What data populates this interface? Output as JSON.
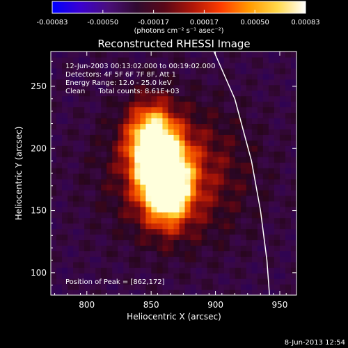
{
  "colorbar": {
    "ticks": [
      "-0.00083",
      "-0.00050",
      "-0.00017",
      "0.00017",
      "0.00050",
      "0.00083"
    ],
    "unit_label": "(photons cm⁻² s⁻¹ asec⁻²)",
    "stops": [
      "#0000ff",
      "#3b00d0",
      "#4a0f7a",
      "#300a30",
      "#5a0818",
      "#b01608",
      "#ff3d00",
      "#ff9a00",
      "#ffd84a",
      "#ffffff"
    ]
  },
  "chart_data": {
    "type": "heatmap",
    "title": "Reconstructed RHESSI Image",
    "xlabel": "Heliocentric X (arcsec)",
    "ylabel": "Heliocentric Y (arcsec)",
    "xlim": [
      772,
      963
    ],
    "ylim": [
      82,
      278
    ],
    "xticks": [
      800,
      850,
      900,
      950
    ],
    "yticks": [
      100,
      150,
      200,
      250
    ],
    "annotations": [
      "12-Jun-2003 00:13:02.000 to 00:19:02.000",
      "Detectors: 4F 5F 6F 7F 8F, Att 1",
      "Energy Range: 12.0 - 25.0 keV",
      "Clean      Total counts: 8.61E+03"
    ],
    "peak_label": "Position of Peak = [862,172]",
    "peak": [
      862,
      172
    ],
    "sources": [
      {
        "x": 862,
        "y": 172,
        "intensity": 1.0
      },
      {
        "x": 850,
        "y": 205,
        "intensity": 0.8
      }
    ],
    "limb_points": [
      [
        898,
        280
      ],
      [
        915,
        240
      ],
      [
        928,
        190
      ],
      [
        935,
        150
      ],
      [
        940,
        110
      ],
      [
        942,
        82
      ]
    ]
  },
  "timestamp": "8-Jun-2013 12:54"
}
